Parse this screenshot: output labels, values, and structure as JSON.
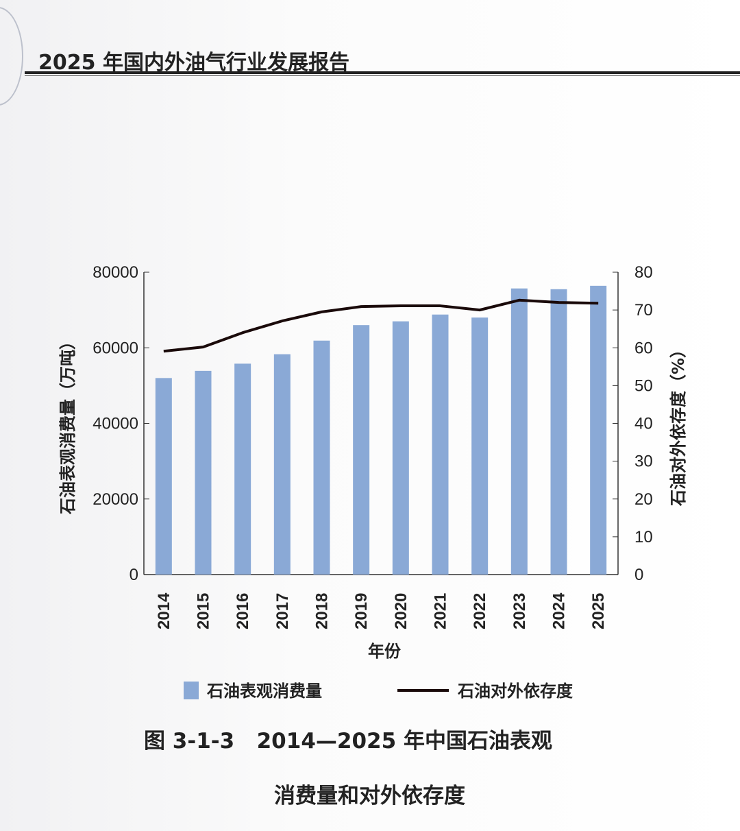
{
  "header": {
    "title": "2025 年国内外油气行业发展报告"
  },
  "caption": {
    "line1": "图 3-1-3   2014—2025 年中国石油表观",
    "line2": "消费量和对外依存度"
  },
  "chart_data": {
    "type": "bar+line",
    "categories": [
      "2014",
      "2015",
      "2016",
      "2017",
      "2018",
      "2019",
      "2020",
      "2021",
      "2022",
      "2023",
      "2024",
      "2025"
    ],
    "series": [
      {
        "name": "石油表观消费量",
        "type": "bar",
        "axis": "left",
        "color": "#8aa9d6",
        "values": [
          52000,
          53900,
          55800,
          58300,
          61900,
          66000,
          67000,
          68800,
          68000,
          75700,
          75500,
          76400
        ]
      },
      {
        "name": "石油对外依存度",
        "type": "line",
        "axis": "right",
        "color": "#1a0a0a",
        "values": [
          59.1,
          60.2,
          64.0,
          67.1,
          69.5,
          70.9,
          71.1,
          71.1,
          70.0,
          72.6,
          72.0,
          71.8
        ]
      }
    ],
    "xlabel": "年份",
    "ylabel_left": "石油表观消费量（万吨）",
    "ylabel_right": "石油对外依存度（%）",
    "ylim_left": [
      0,
      80000
    ],
    "ylim_right": [
      0,
      80
    ],
    "yticks_left": [
      "0",
      "20000",
      "40000",
      "60000",
      "80000"
    ],
    "yticks_right": [
      "0",
      "10",
      "20",
      "30",
      "40",
      "50",
      "60",
      "70",
      "80"
    ],
    "grid": false,
    "legend": "bottom"
  }
}
